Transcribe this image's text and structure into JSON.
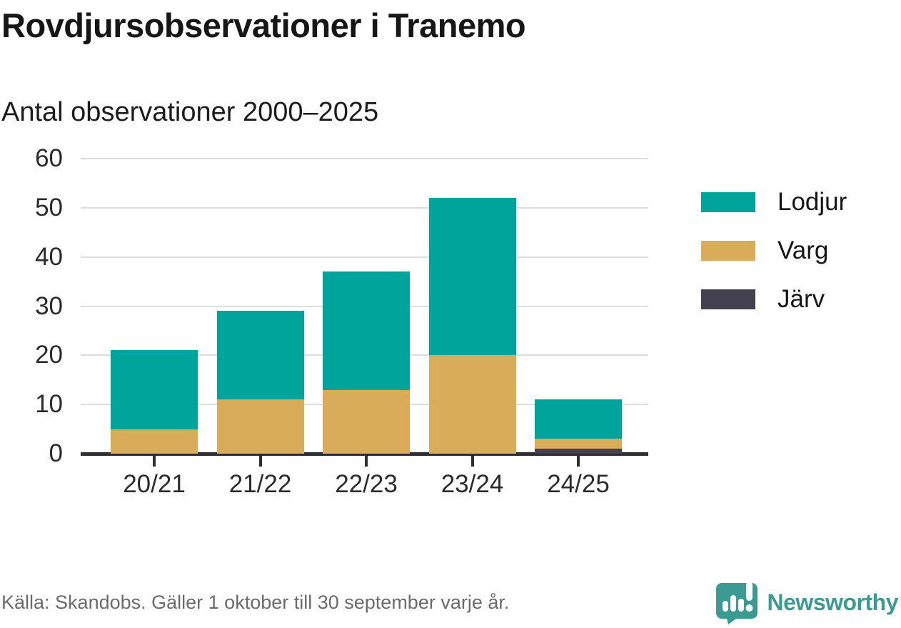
{
  "header": {
    "title": "Rovdjursobservationer i Tranemo",
    "subtitle": "Antal observationer 2000–2025"
  },
  "chart_data": {
    "type": "bar",
    "stacked": true,
    "title": "Rovdjursobservationer i Tranemo",
    "subtitle": "Antal observationer 2000–2025",
    "categories": [
      "20/21",
      "21/22",
      "22/23",
      "23/24",
      "24/25"
    ],
    "series": [
      {
        "name": "Lodjur",
        "color": "#00A49B",
        "values": [
          16,
          18,
          24,
          32,
          8
        ]
      },
      {
        "name": "Varg",
        "color": "#D9AC5A",
        "values": [
          5,
          11,
          13,
          20,
          2
        ]
      },
      {
        "name": "Järv",
        "color": "#434050",
        "values": [
          0,
          0,
          0,
          0,
          1
        ]
      }
    ],
    "stack_totals": [
      21,
      29,
      37,
      52,
      11
    ],
    "xlabel": "",
    "ylabel": "",
    "ylim": [
      0,
      60
    ],
    "yticks": [
      0,
      10,
      20,
      30,
      40,
      50,
      60
    ],
    "grid": "horizontal",
    "legend_position": "right"
  },
  "footer": {
    "source": "Källa: Skandobs. Gäller 1 oktober till 30 september varje år.",
    "brand": "Newsworthy",
    "brand_color": "#3B9A92"
  }
}
